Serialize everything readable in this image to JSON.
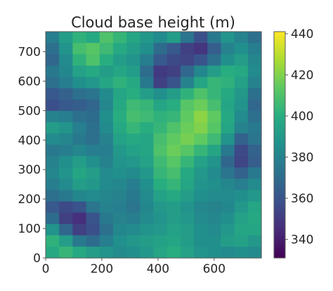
{
  "chart_data": {
    "type": "heatmap",
    "title": "Cloud base height (m)",
    "xlabel": "",
    "ylabel": "",
    "xlim": [
      0,
      768
    ],
    "ylim": [
      0,
      768
    ],
    "x_ticks": [
      0,
      200,
      400,
      600
    ],
    "y_ticks": [
      0,
      100,
      200,
      300,
      400,
      500,
      600,
      700
    ],
    "colormap": "viridis",
    "color_range": [
      331,
      441
    ],
    "colorbar_ticks": [
      340,
      360,
      380,
      400,
      420,
      440
    ],
    "grid": false,
    "field": {
      "grid_size": [
        20,
        16
      ],
      "row_order": "top_to_bottom",
      "values": [
        [
          378,
          392,
          402,
          398,
          410,
          404,
          396,
          390,
          384,
          392,
          374,
          358,
          376,
          388,
          380,
          372
        ],
        [
          372,
          388,
          408,
          412,
          406,
          398,
          392,
          386,
          370,
          362,
          352,
          348,
          364,
          380,
          386,
          378
        ],
        [
          368,
          384,
          402,
          410,
          400,
          392,
          388,
          378,
          362,
          356,
          354,
          360,
          372,
          386,
          392,
          382
        ],
        [
          376,
          382,
          394,
          398,
          392,
          396,
          392,
          370,
          350,
          352,
          368,
          382,
          392,
          400,
          398,
          384
        ],
        [
          372,
          378,
          386,
          390,
          396,
          402,
          398,
          376,
          352,
          360,
          380,
          396,
          404,
          402,
          394,
          380
        ],
        [
          362,
          366,
          372,
          374,
          384,
          396,
          400,
          392,
          386,
          392,
          402,
          410,
          404,
          398,
          390,
          372
        ],
        [
          358,
          362,
          364,
          368,
          382,
          398,
          406,
          404,
          396,
          400,
          412,
          416,
          408,
          396,
          388,
          368
        ],
        [
          380,
          378,
          372,
          370,
          386,
          400,
          408,
          406,
          402,
          404,
          414,
          422,
          414,
          398,
          384,
          372
        ],
        [
          392,
          388,
          378,
          372,
          384,
          398,
          404,
          400,
          404,
          410,
          416,
          420,
          412,
          396,
          380,
          376
        ],
        [
          384,
          382,
          376,
          372,
          380,
          394,
          398,
          396,
          408,
          414,
          418,
          414,
          406,
          388,
          366,
          374
        ],
        [
          376,
          378,
          382,
          378,
          378,
          390,
          394,
          396,
          410,
          416,
          412,
          404,
          396,
          376,
          356,
          366
        ],
        [
          380,
          386,
          392,
          386,
          380,
          388,
          390,
          394,
          406,
          412,
          404,
          394,
          388,
          368,
          354,
          364
        ],
        [
          382,
          388,
          396,
          392,
          384,
          386,
          384,
          390,
          404,
          408,
          398,
          390,
          384,
          374,
          366,
          376
        ],
        [
          378,
          384,
          392,
          390,
          384,
          382,
          378,
          386,
          400,
          404,
          396,
          388,
          386,
          382,
          378,
          384
        ],
        [
          372,
          376,
          382,
          384,
          382,
          380,
          376,
          384,
          394,
          398,
          392,
          386,
          384,
          384,
          386,
          390
        ],
        [
          362,
          356,
          360,
          374,
          380,
          378,
          374,
          382,
          390,
          392,
          388,
          382,
          380,
          382,
          390,
          396
        ],
        [
          370,
          352,
          346,
          360,
          376,
          380,
          378,
          384,
          388,
          392,
          390,
          384,
          382,
          386,
          394,
          398
        ],
        [
          388,
          368,
          352,
          358,
          372,
          382,
          384,
          388,
          390,
          394,
          392,
          386,
          384,
          390,
          396,
          396
        ],
        [
          402,
          392,
          376,
          370,
          378,
          386,
          390,
          392,
          394,
          396,
          392,
          386,
          386,
          392,
          394,
          390
        ],
        [
          398,
          404,
          398,
          392,
          388,
          384,
          386,
          390,
          396,
          400,
          394,
          388,
          386,
          384,
          386,
          384
        ]
      ]
    }
  }
}
